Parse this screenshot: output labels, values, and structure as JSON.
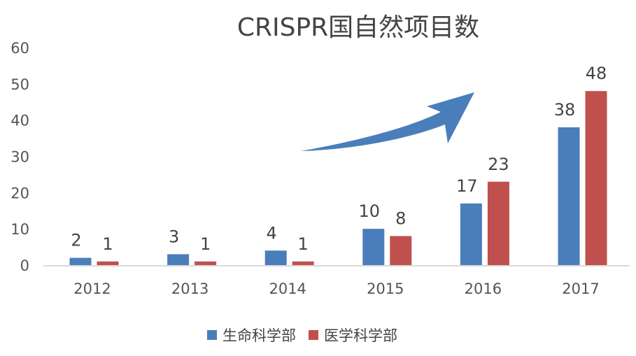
{
  "chart_data": {
    "type": "bar",
    "title": "CRISPR国自然项目数",
    "categories": [
      "2012",
      "2013",
      "2014",
      "2015",
      "2016",
      "2017"
    ],
    "series": [
      {
        "name": "生命科学部",
        "values": [
          2,
          3,
          4,
          10,
          17,
          38
        ],
        "color": "#4a7ebb"
      },
      {
        "name": "医学科学部",
        "values": [
          1,
          1,
          1,
          8,
          23,
          48
        ],
        "color": "#c0504d"
      }
    ],
    "ylim": [
      0,
      60
    ],
    "yticks": [
      0,
      10,
      20,
      30,
      40,
      50,
      60
    ],
    "grid": false,
    "legend": "bottom",
    "annotation": "blue upward-trend arrow"
  }
}
